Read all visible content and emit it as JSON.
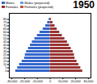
{
  "chart_data": {
    "type": "bar",
    "title": "1950",
    "orientation": "horizontal",
    "legend": "upper left",
    "grid": false,
    "categories": [
      "0",
      "5",
      "10",
      "15",
      "20",
      "25",
      "30",
      "35",
      "40",
      "45",
      "50",
      "55",
      "60",
      "65",
      "70",
      "75",
      "80"
    ],
    "series": [
      {
        "name": "Males",
        "color": "#3366cc",
        "values": [
          -27000,
          -25500,
          -24000,
          -22000,
          -20000,
          -19500,
          -18500,
          -17000,
          -15500,
          -14000,
          -12000,
          -10000,
          -8000,
          -5500,
          -3500,
          -2000,
          -800
        ]
      },
      {
        "name": "Females",
        "color": "#993333",
        "values": [
          25500,
          24000,
          22500,
          21000,
          19500,
          19000,
          18000,
          16500,
          15000,
          13500,
          11500,
          9500,
          7500,
          5500,
          3800,
          2200,
          900
        ]
      },
      {
        "name": "Males (projected)",
        "color": "#6699ee",
        "values": [
          null,
          null,
          null,
          null,
          null,
          null,
          null,
          null,
          null,
          null,
          null,
          null,
          null,
          null,
          null,
          null,
          null
        ]
      },
      {
        "name": "Females (projected)",
        "color": "#bb5544",
        "values": [
          null,
          null,
          null,
          null,
          null,
          null,
          null,
          null,
          null,
          null,
          null,
          null,
          null,
          null,
          null,
          null,
          null
        ]
      }
    ],
    "xlim": [
      -32000,
      32000
    ],
    "xticks": [
      {
        "value": -30000,
        "label": "-30,000"
      },
      {
        "value": -20000,
        "label": "-20,000"
      },
      {
        "value": -10000,
        "label": "-10,000"
      },
      0,
      {
        "value": 10000,
        "label": "10,000"
      },
      {
        "value": 20000,
        "label": "20,000"
      },
      {
        "value": 30000,
        "label": "30,000"
      }
    ]
  }
}
